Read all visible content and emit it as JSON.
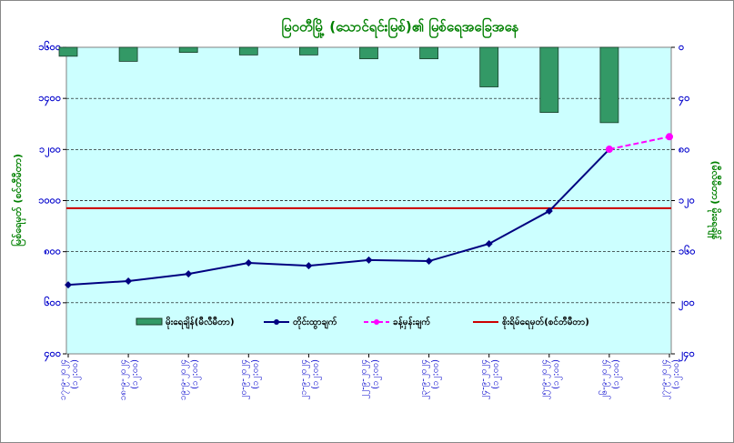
{
  "chart_data": {
    "type": "bar-line",
    "title": "မြဝတီမြို့ (သောင်ရင်းမြစ်)၏ မြစ်ရေအခြေအနေ",
    "y_label": "မြစ်ရေမှတ် (စင်တီမီတာ)",
    "y2_label": "(မီလီမီတာ) မိုးရေချိန်",
    "categories": [
      "၁၇-၉-၂၀၂၄ (၁၂:၀၀)",
      "၁၈-၉-၂၀၂၄ (၁၂:၀၀)",
      "၁၉-၉-၂၀၂၄ (၁၂:၀၀)",
      "၂၀-၉-၂၀၂၄ (၁၂:၀၀)",
      "၂၁-၉-၂၀၂၄ (၁၂:၀၀)",
      "၂၂-၉-၂၀၂၄ (၁၂:၀၀)",
      "၂၃-၉-၂၀၂၄ (၁၂:၀၀)",
      "၂၄-၉-၂၀၂၄ (၁၂:၀၀)",
      "၂၅-၉-၂၀၂၄ (၁၂:၀၀)",
      "၂၆-၉-၂၀၂၄ (၁၂:၀၀)",
      "၂၇-၉-၂၀၂၄ (၁၂:၀၀)"
    ],
    "series": [
      {
        "name": "မိုးရေချိန်(မီလီမီတာ)",
        "type": "bar",
        "axis": "y2",
        "color": "#339966",
        "values": [
          7,
          11,
          4,
          6,
          6,
          9,
          9,
          31,
          51,
          59,
          null
        ]
      },
      {
        "name": "တိုင်းထွာချက်",
        "type": "line",
        "color": "#000080",
        "marker": "diamond",
        "values": [
          670,
          685,
          713,
          756,
          745,
          767,
          763,
          831,
          959,
          1201,
          null
        ]
      },
      {
        "name": "ခန့်မှန်းချက်",
        "type": "line",
        "color": "#ff00ff",
        "dashed": true,
        "marker": "circle",
        "values": [
          null,
          null,
          null,
          null,
          null,
          null,
          null,
          null,
          null,
          1201,
          1250
        ]
      }
    ],
    "reference_line": {
      "name": "စိုးရိမ်ရေမှတ်(စင်တီမီတာ)",
      "value": 970,
      "color": "#cc0000"
    },
    "ylim": [
      400,
      1600
    ],
    "yticks": [
      {
        "value": 400,
        "label": "၄၀၀"
      },
      {
        "value": 600,
        "label": "၆၀၀"
      },
      {
        "value": 800,
        "label": "၈၀၀"
      },
      {
        "value": 1000,
        "label": "၁၀၀၀"
      },
      {
        "value": 1200,
        "label": "၁၂၀၀"
      },
      {
        "value": 1400,
        "label": "၁၄၀၀"
      },
      {
        "value": 1600,
        "label": "၁၆၀၀"
      }
    ],
    "y2lim": [
      0,
      240
    ],
    "y2_inverted": true,
    "y2ticks": [
      {
        "value": 0,
        "label": "၀"
      },
      {
        "value": 40,
        "label": "၄၀"
      },
      {
        "value": 80,
        "label": "၈၀"
      },
      {
        "value": 120,
        "label": "၁၂၀"
      },
      {
        "value": 160,
        "label": "၁၆၀"
      },
      {
        "value": 200,
        "label": "၂၀၀"
      },
      {
        "value": 240,
        "label": "၂၄၀"
      }
    ],
    "grid": true,
    "legend": "bottom"
  }
}
